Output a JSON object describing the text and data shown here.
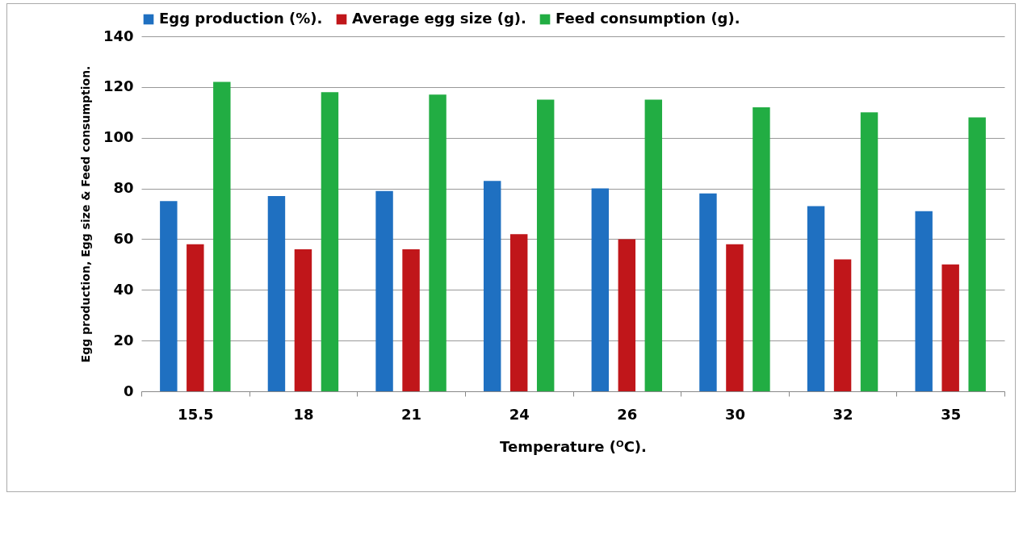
{
  "chart_data": {
    "type": "bar",
    "xlabel": "Temperature (ᴼC).",
    "ylabel": "Egg production, Egg size & Feed consumption.",
    "categories": [
      "15.5",
      "18",
      "21",
      "24",
      "26",
      "30",
      "32",
      "35"
    ],
    "series": [
      {
        "name": "Egg production (%).",
        "color": "#1f70c1",
        "values": [
          75,
          77,
          79,
          83,
          80,
          78,
          73,
          71
        ]
      },
      {
        "name": "Average egg size (g).",
        "color": "#c0161a",
        "values": [
          58,
          56,
          56,
          62,
          60,
          58,
          52,
          50
        ]
      },
      {
        "name": "Feed consumption (g).",
        "color": "#22ad43",
        "values": [
          122,
          118,
          117,
          115,
          115,
          112,
          110,
          108
        ]
      }
    ],
    "ylim": [
      0,
      140
    ],
    "yticks": [
      0,
      20,
      40,
      60,
      80,
      100,
      120,
      140
    ],
    "grid": "y",
    "legend": "top"
  }
}
